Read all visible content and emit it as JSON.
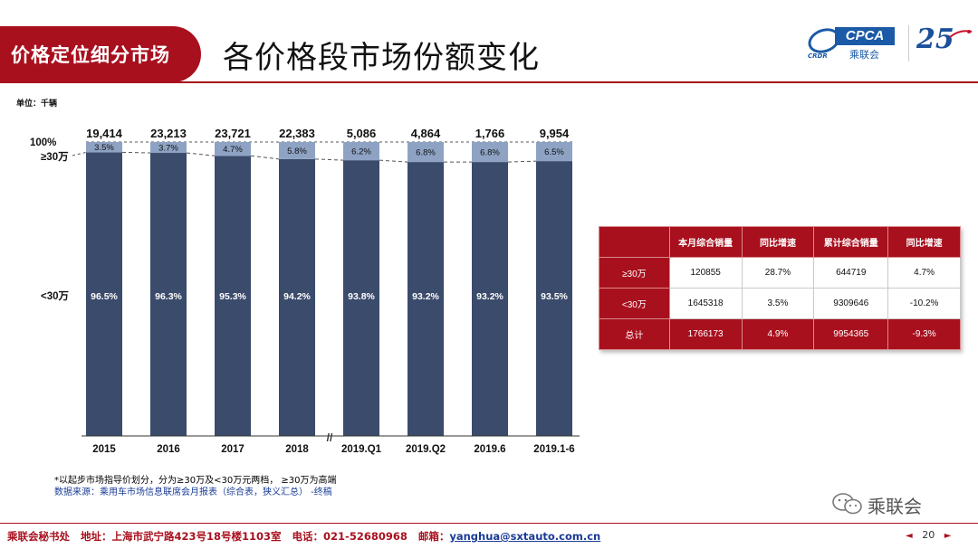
{
  "header": {
    "section_tab": "价格定位细分市场",
    "title": "各价格段市场份额变化",
    "logo_cpca_text": "CPCA",
    "logo_cpca_cn": "乘联会",
    "logo_cpca_small": "CRDR",
    "logo_25": "25"
  },
  "unit_label": "单位：千辆",
  "chart_data": {
    "type": "bar",
    "stacked": "percent",
    "categories": [
      "2015",
      "2016",
      "2017",
      "2018",
      "2019.Q1",
      "2019.Q2",
      "2019.6",
      "2019.1-6"
    ],
    "totals": [
      "19,414",
      "23,213",
      "23,721",
      "22,383",
      "5,086",
      "4,864",
      "1,766",
      "9,954"
    ],
    "series": [
      {
        "name": "<30万",
        "values": [
          96.5,
          96.3,
          95.3,
          94.2,
          93.8,
          93.2,
          93.2,
          93.5
        ],
        "labels": [
          "96.5%",
          "96.3%",
          "95.3%",
          "94.2%",
          "93.8%",
          "93.2%",
          "93.2%",
          "93.5%"
        ],
        "color": "#3a4b6b"
      },
      {
        "name": "≥30万",
        "values": [
          3.5,
          3.7,
          4.7,
          5.8,
          6.2,
          6.8,
          6.8,
          6.5
        ],
        "labels": [
          "3.5%",
          "3.7%",
          "4.7%",
          "5.8%",
          "6.2%",
          "6.8%",
          "6.8%",
          "6.5%"
        ],
        "color": "#8ea3c4"
      }
    ],
    "axis_labels": {
      "top": "100%"
    },
    "axis_break": "//",
    "ylim": [
      0,
      100
    ]
  },
  "footnotes": {
    "note1": "*以起步市场指导价划分，分为≥30万及<30万元两档，  ≥30万为高端",
    "note2": "数据来源：乘用车市场信息联席会月报表（综合表，狭义汇总）  -终稿"
  },
  "table": {
    "headers": [
      "",
      "本月综合销量",
      "同比增速",
      "累计综合销量",
      "同比增速"
    ],
    "rows": [
      {
        "label": "≥30万",
        "cells": [
          "120855",
          "28.7%",
          "644719",
          "4.7%"
        ]
      },
      {
        "label": "<30万",
        "cells": [
          "1645318",
          "3.5%",
          "9309646",
          "-10.2%"
        ]
      },
      {
        "label": "总计",
        "cells": [
          "1766173",
          "4.9%",
          "9954365",
          "-9.3%"
        ]
      }
    ]
  },
  "wechat_label": "乘联会",
  "footer": {
    "org": "乘联会秘书处",
    "address": "地址：上海市武宁路423号18号楼1103室",
    "phone": "电话：021-52680968",
    "email_label": "邮箱：",
    "email": "yanghua@sxtauto.com.cn"
  },
  "pager": {
    "page": "20",
    "prev": "◄",
    "next": "►"
  }
}
